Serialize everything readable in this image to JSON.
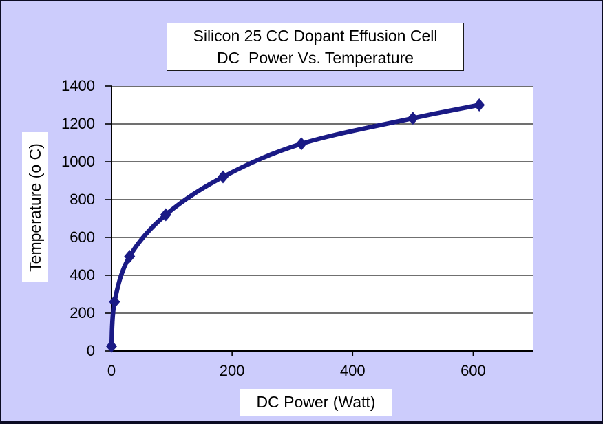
{
  "chart_data": {
    "type": "line",
    "title_lines": [
      "Silicon 25 CC Dopant Effusion Cell",
      "DC  Power Vs. Temperature"
    ],
    "xlabel": "DC Power (Watt)",
    "ylabel": "Temperature (o C)",
    "x": [
      0,
      5,
      30,
      90,
      185,
      315,
      500,
      610
    ],
    "series": [
      {
        "name": "Temperature",
        "values": [
          25,
          260,
          500,
          720,
          920,
          1095,
          1230,
          1300
        ]
      }
    ],
    "xlim": [
      0,
      700
    ],
    "ylim": [
      0,
      1400
    ],
    "xticks": [
      0,
      200,
      400,
      600
    ],
    "yticks": [
      0,
      200,
      400,
      600,
      800,
      1000,
      1200,
      1400
    ],
    "grid": "horizontal",
    "legend": "none",
    "smooth": true,
    "marker": "diamond",
    "colors": {
      "background": "#CCCCFC",
      "plot_background": "#FFFFFF",
      "line": "#1A1A85",
      "gridline": "#1a1a1a",
      "axis": "#000000",
      "frame_border": "#0b0b23",
      "text": "#000000"
    }
  }
}
